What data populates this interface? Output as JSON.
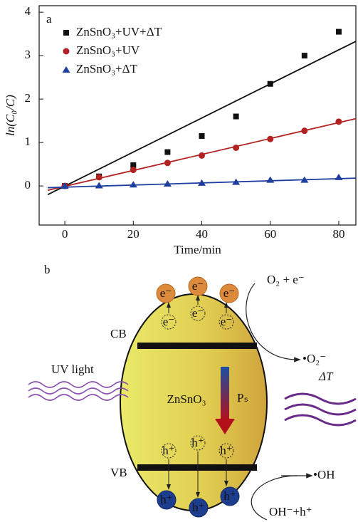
{
  "chart_data": {
    "type": "scatter",
    "panel_label": "a",
    "x_label": "Time/min",
    "y_label": "ln(C₀/C)",
    "x": [
      0,
      10,
      20,
      30,
      40,
      50,
      60,
      70,
      80
    ],
    "series": [
      {
        "name": "ZnSnO₃+UV+ΔT",
        "color": "#111111",
        "marker": "square",
        "values": [
          0,
          0.22,
          0.48,
          0.78,
          1.15,
          1.6,
          2.35,
          3.0,
          3.55
        ],
        "fit": {
          "x": [
            -5,
            85
          ],
          "y": [
            -0.2,
            3.33
          ]
        }
      },
      {
        "name": "ZnSnO₃+UV",
        "color": "#b22222",
        "marker": "circle",
        "values": [
          0,
          0.2,
          0.37,
          0.53,
          0.7,
          0.88,
          1.08,
          1.27,
          1.48
        ],
        "fit": {
          "x": [
            -5,
            85
          ],
          "y": [
            -0.1,
            1.55
          ]
        }
      },
      {
        "name": "ZnSnO₃+ΔT",
        "color": "#1f3f9f",
        "marker": "triangle",
        "values": [
          0,
          0.01,
          0.03,
          0.05,
          0.07,
          0.09,
          0.14,
          0.14,
          0.2
        ],
        "fit": {
          "x": [
            -5,
            85
          ],
          "y": [
            -0.04,
            0.18
          ]
        }
      }
    ],
    "xlim": [
      -7.5,
      85
    ],
    "ylim": [
      -0.9,
      4.15
    ],
    "xticks": [
      0,
      20,
      40,
      60,
      80
    ],
    "yticks": [
      0,
      1,
      2,
      3,
      4
    ],
    "legend": "upper left"
  },
  "diagram": {
    "panel_label": "b",
    "cb": "CB",
    "vb": "VB",
    "uv": "UV light",
    "material": "ZnSnO₃",
    "polarization": "Pₛ",
    "heat": "ΔT",
    "reduction_in": "O₂ + e⁻",
    "reduction_out": "•O₂⁻",
    "oxidation_out": "•OH",
    "oxidation_in": "OH⁻+h⁺",
    "electrons": [
      "e⁻",
      "e⁻",
      "e⁻"
    ],
    "inner_electrons": [
      "e⁻",
      "e⁻",
      "e⁻"
    ],
    "inner_holes": [
      "h⁺",
      "h⁺",
      "h⁺"
    ],
    "holes": [
      "h⁺",
      "h⁺",
      "h⁺"
    ]
  }
}
